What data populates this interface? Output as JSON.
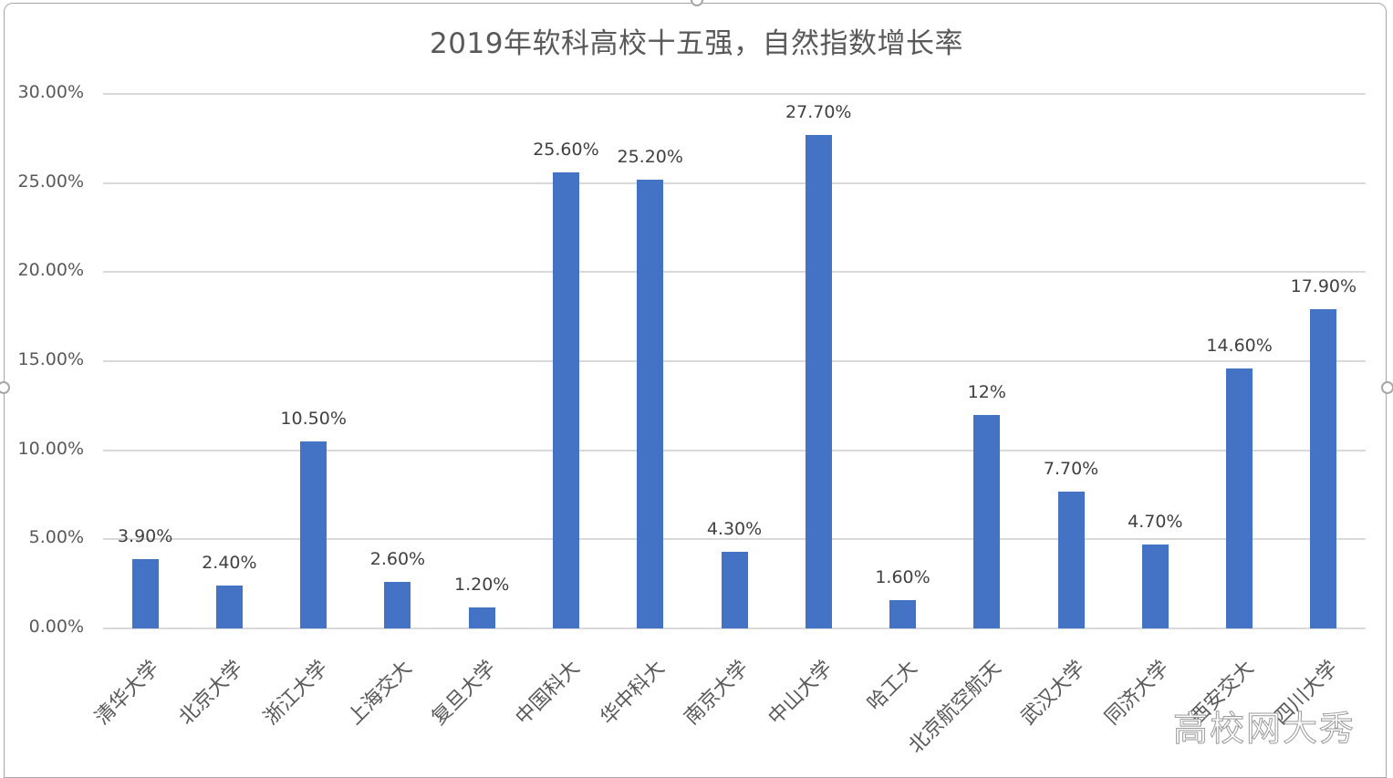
{
  "chart_data": {
    "type": "bar",
    "title": "2019年软科高校十五强，自然指数增长率",
    "xlabel": "",
    "ylabel": "",
    "ylim": [
      0,
      0.3
    ],
    "y_ticks": [
      "0.00%",
      "5.00%",
      "10.00%",
      "15.00%",
      "20.00%",
      "25.00%",
      "30.00%"
    ],
    "grid": true,
    "legend": "none",
    "bar_color": "#4472c4",
    "categories": [
      "清华大学",
      "北京大学",
      "浙江大学",
      "上海交大",
      "复旦大学",
      "中国科大",
      "华中科大",
      "南京大学",
      "中山大学",
      "哈工大",
      "北京航空航天",
      "武汉大学",
      "同济大学",
      "西安交大",
      "四川大学"
    ],
    "values": [
      3.9,
      2.4,
      10.5,
      2.6,
      1.2,
      25.6,
      25.2,
      4.3,
      27.7,
      1.6,
      12.0,
      7.7,
      4.7,
      14.6,
      17.9
    ],
    "value_unit": "%",
    "data_labels": [
      "3.90%",
      "2.40%",
      "10.50%",
      "2.60%",
      "1.20%",
      "25.60%",
      "25.20%",
      "4.30%",
      "27.70%",
      "1.60%",
      "12%",
      "7.70%",
      "4.70%",
      "14.60%",
      "17.90%"
    ]
  },
  "watermark": "高校网大秀"
}
